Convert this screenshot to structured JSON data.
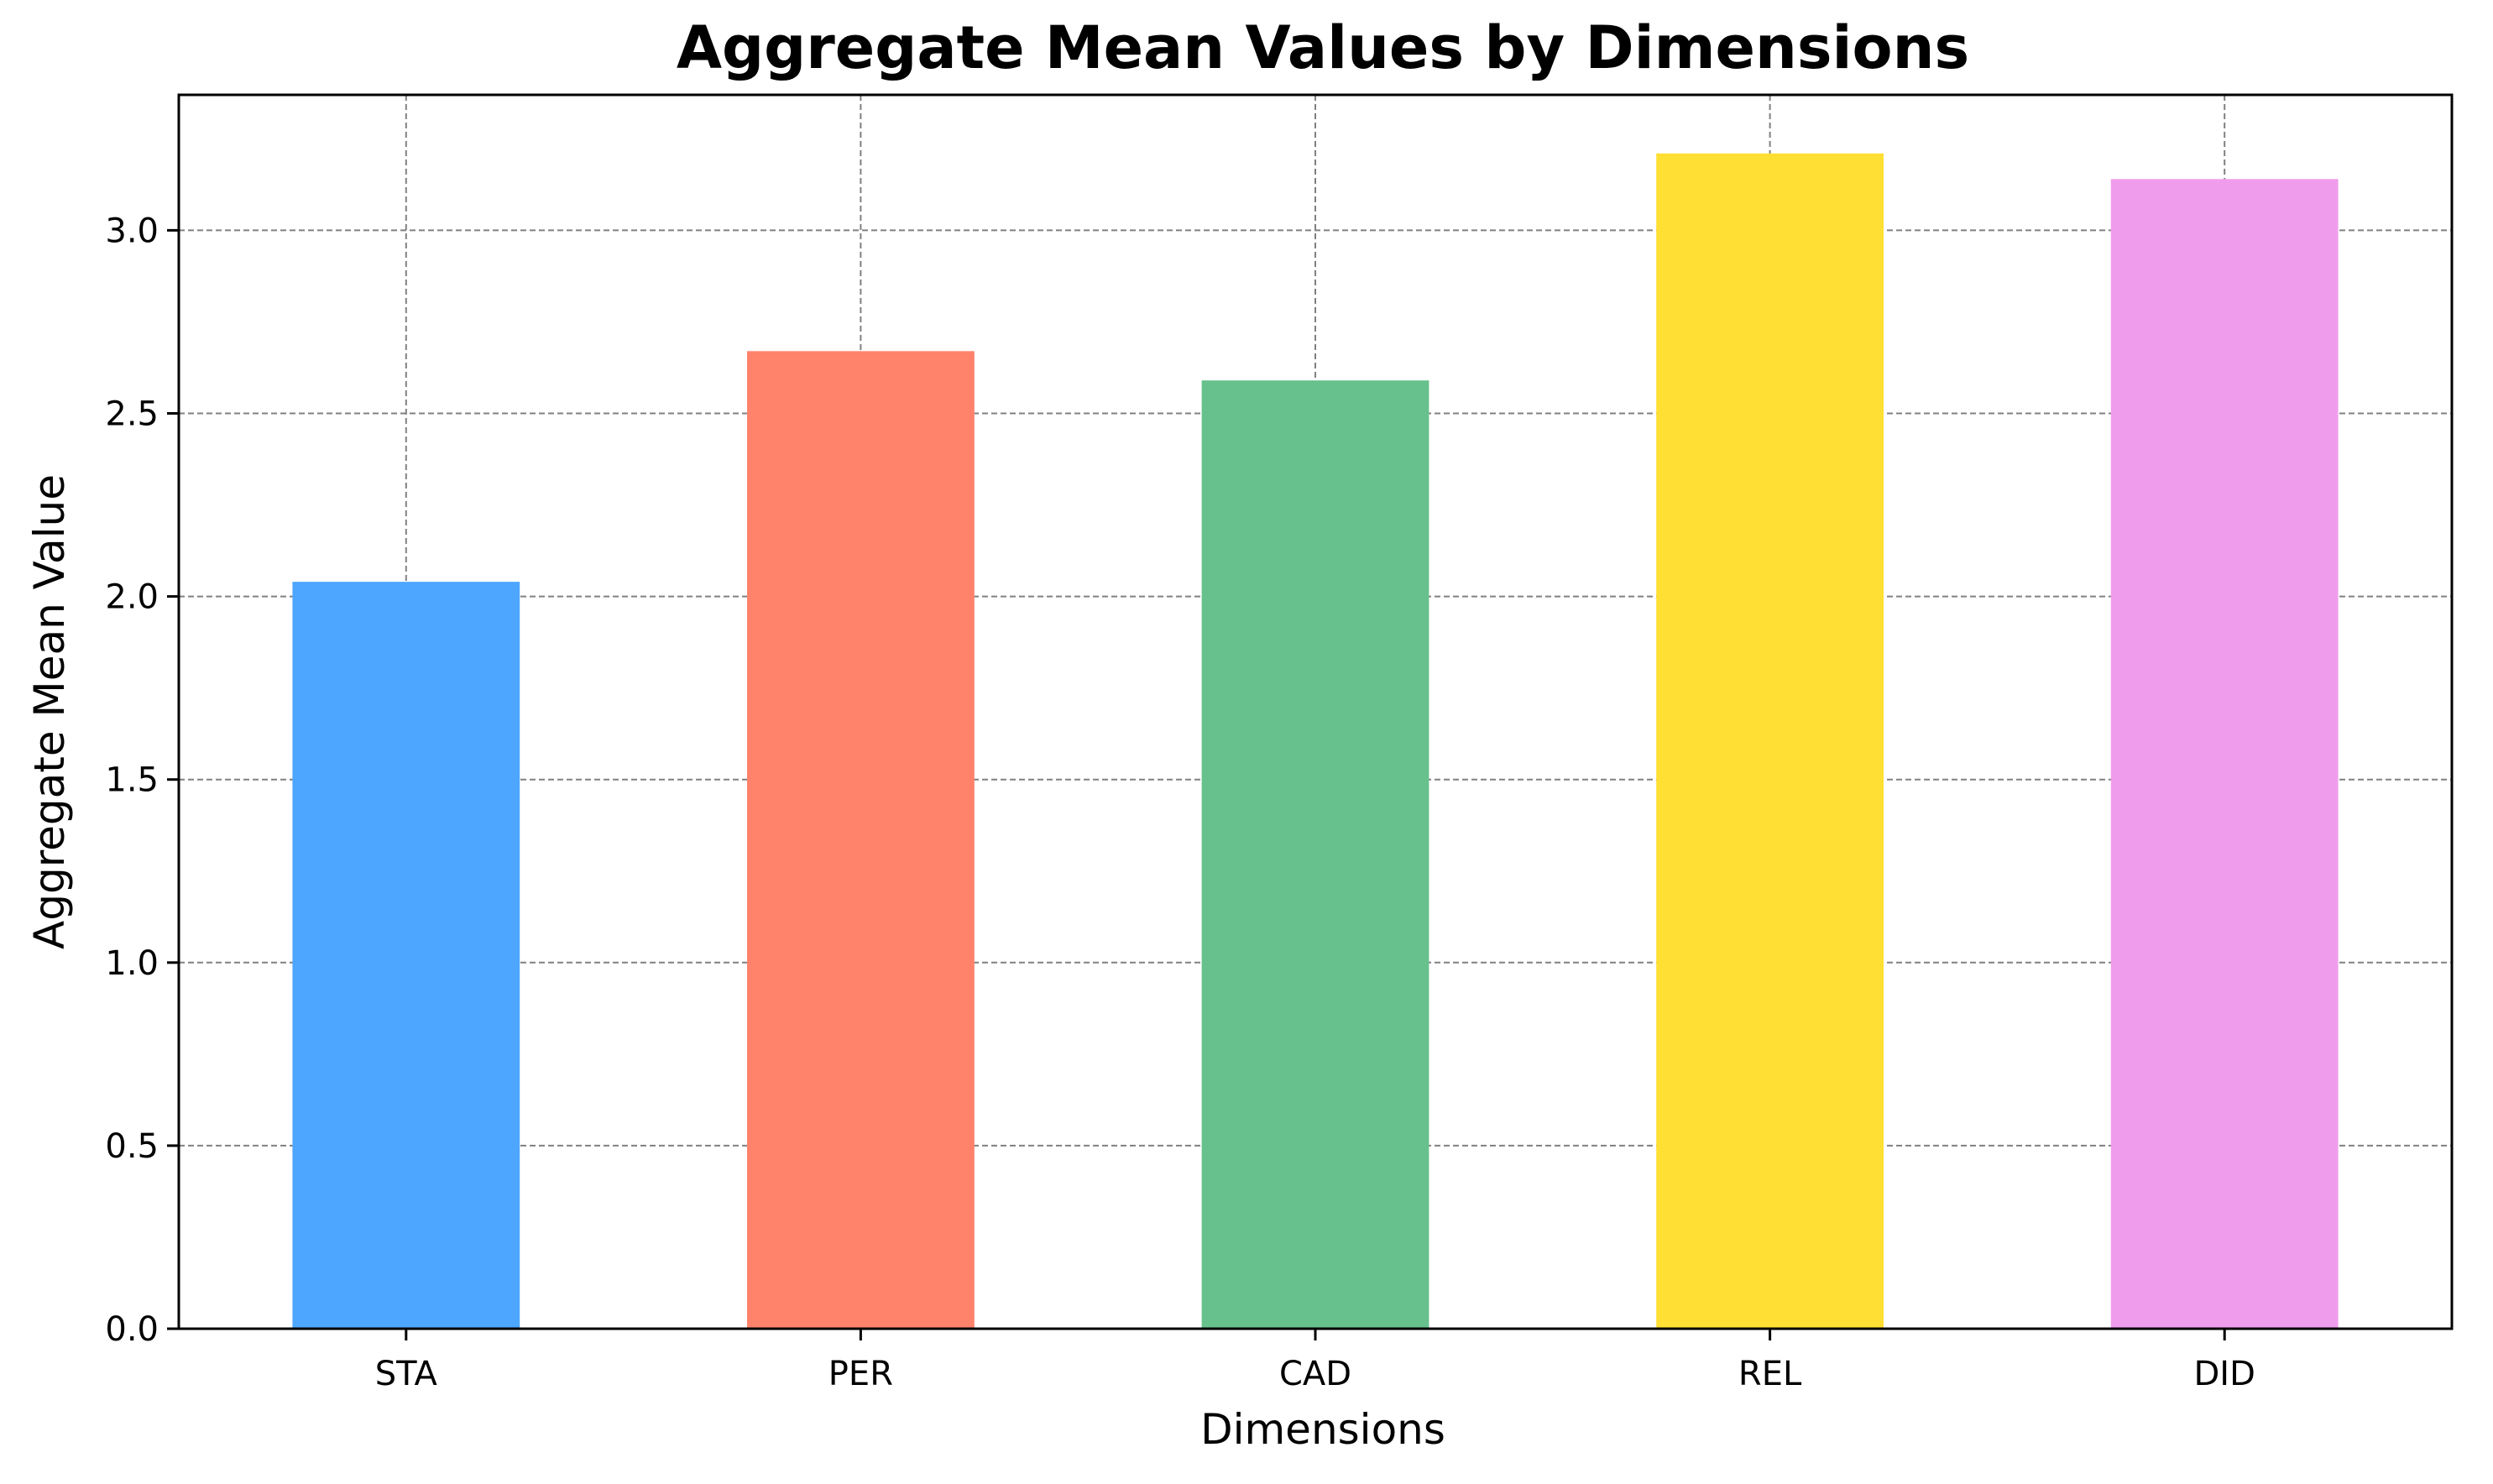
{
  "chart_data": {
    "type": "bar",
    "title": "Aggregate Mean Values by Dimensions",
    "xlabel": "Dimensions",
    "ylabel": "Aggregate Mean Value",
    "categories": [
      "STA",
      "PER",
      "CAD",
      "REL",
      "DID"
    ],
    "values": [
      2.04,
      2.67,
      2.59,
      3.21,
      3.14
    ],
    "colors": [
      "#4da6ff",
      "#ff826b",
      "#66c18c",
      "#ffdf33",
      "#f09cec"
    ],
    "ylim": [
      0,
      3.37
    ],
    "yticks": [
      0.0,
      0.5,
      1.0,
      1.5,
      2.0,
      2.5,
      3.0
    ],
    "ytick_labels": [
      "0.0",
      "0.5",
      "1.0",
      "1.5",
      "2.0",
      "2.5",
      "3.0"
    ],
    "grid": true,
    "legend": false
  }
}
